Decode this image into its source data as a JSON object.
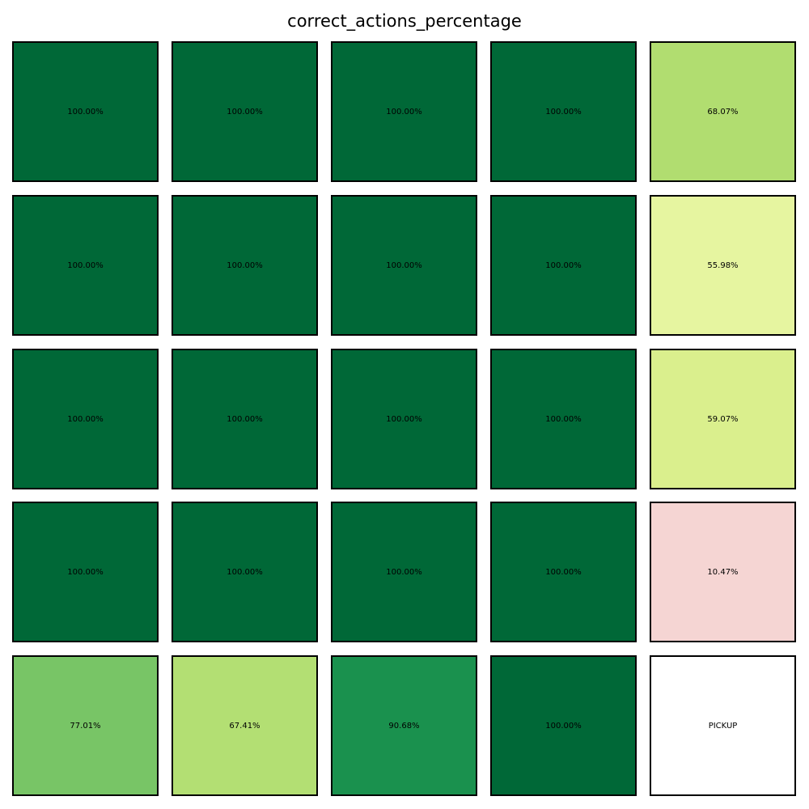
{
  "chart_data": {
    "type": "heatmap",
    "title": "correct_actions_percentage",
    "rows": 5,
    "cols": 5,
    "cells": [
      [
        {
          "label": "100.00%",
          "value": 100.0,
          "color": "#006837"
        },
        {
          "label": "100.00%",
          "value": 100.0,
          "color": "#006837"
        },
        {
          "label": "100.00%",
          "value": 100.0,
          "color": "#006837"
        },
        {
          "label": "100.00%",
          "value": 100.0,
          "color": "#006837"
        },
        {
          "label": "68.07%",
          "value": 68.07,
          "color": "#b1dd70"
        }
      ],
      [
        {
          "label": "100.00%",
          "value": 100.0,
          "color": "#006837"
        },
        {
          "label": "100.00%",
          "value": 100.0,
          "color": "#006837"
        },
        {
          "label": "100.00%",
          "value": 100.0,
          "color": "#006837"
        },
        {
          "label": "100.00%",
          "value": 100.0,
          "color": "#006837"
        },
        {
          "label": "55.98%",
          "value": 55.98,
          "color": "#e6f5a0"
        }
      ],
      [
        {
          "label": "100.00%",
          "value": 100.0,
          "color": "#006837"
        },
        {
          "label": "100.00%",
          "value": 100.0,
          "color": "#006837"
        },
        {
          "label": "100.00%",
          "value": 100.0,
          "color": "#006837"
        },
        {
          "label": "100.00%",
          "value": 100.0,
          "color": "#006837"
        },
        {
          "label": "59.07%",
          "value": 59.07,
          "color": "#daef8d"
        }
      ],
      [
        {
          "label": "100.00%",
          "value": 100.0,
          "color": "#006837"
        },
        {
          "label": "100.00%",
          "value": 100.0,
          "color": "#006837"
        },
        {
          "label": "100.00%",
          "value": 100.0,
          "color": "#006837"
        },
        {
          "label": "100.00%",
          "value": 100.0,
          "color": "#006837"
        },
        {
          "label": "10.47%",
          "value": 10.47,
          "color": "#f5d5d3"
        }
      ],
      [
        {
          "label": "77.01%",
          "value": 77.01,
          "color": "#78c566"
        },
        {
          "label": "67.41%",
          "value": 67.41,
          "color": "#b3df73"
        },
        {
          "label": "90.68%",
          "value": 90.68,
          "color": "#1a914e"
        },
        {
          "label": "100.00%",
          "value": 100.0,
          "color": "#006837"
        },
        {
          "label": "PICKUP",
          "value": null,
          "color": "#ffffff"
        }
      ]
    ]
  }
}
